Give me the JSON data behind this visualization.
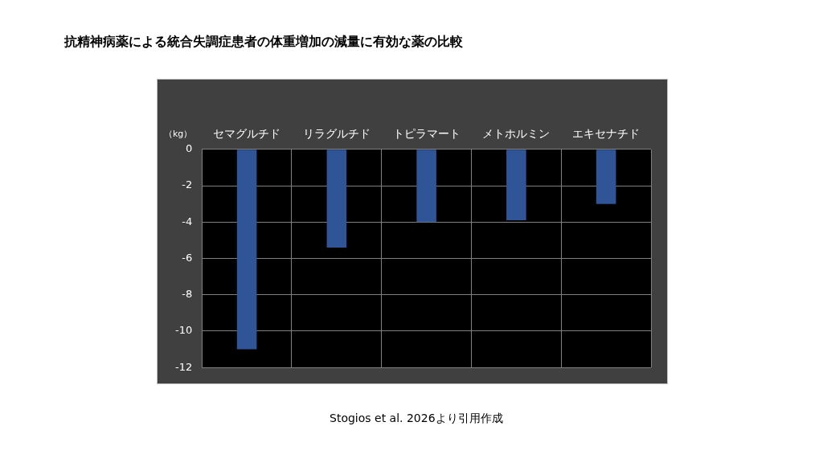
{
  "chart_data": {
    "type": "bar",
    "title": "抗精神病薬による統合失調症患者の体重増加の減量に有効な薬の比較",
    "ylabel": "（kg）",
    "categories": [
      "セマグルチド",
      "リラグルチド",
      "トピラマート",
      "メトホルミン",
      "エキセナチド"
    ],
    "values": [
      -11.0,
      -5.4,
      -4.0,
      -3.9,
      -3.0
    ],
    "color": "#2f5597",
    "ylim": [
      -12,
      0
    ],
    "yticks": [
      -12,
      -10,
      -8,
      -6,
      -4,
      -2,
      0
    ],
    "grid": true,
    "legend": false,
    "annotations": [
      "Stogios et al. 2026より引用作成"
    ]
  }
}
